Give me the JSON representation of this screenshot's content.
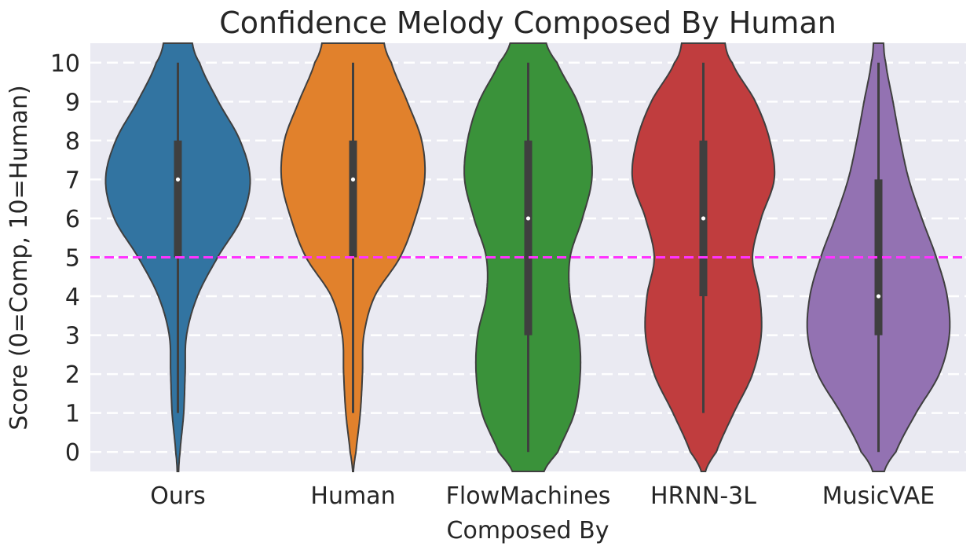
{
  "chart_data": {
    "type": "violin",
    "title": "Confidence Melody Composed By Human",
    "xlabel": "Composed By",
    "ylabel": "Score (0=Comp, 10=Human)",
    "ylim": [
      -0.5,
      10.5
    ],
    "yticks": [
      0,
      1,
      2,
      3,
      4,
      5,
      6,
      7,
      8,
      9,
      10
    ],
    "grid": true,
    "reference_line": {
      "y": 5,
      "color": "#ff33ff",
      "style": "dashed"
    },
    "categories": [
      "Ours",
      "Human",
      "FlowMachines",
      "HRNN-3L",
      "MusicVAE"
    ],
    "series": [
      {
        "name": "Ours",
        "color": "#3274a1",
        "min": 1,
        "q1": 5,
        "median": 7,
        "q3": 8,
        "max": 10,
        "density": [
          [
            -0.5,
            0.01
          ],
          [
            0,
            0.03
          ],
          [
            1,
            0.08
          ],
          [
            2,
            0.1
          ],
          [
            3,
            0.12
          ],
          [
            4,
            0.27
          ],
          [
            5,
            0.55
          ],
          [
            6,
            0.88
          ],
          [
            7,
            1.0
          ],
          [
            8,
            0.86
          ],
          [
            9,
            0.56
          ],
          [
            10,
            0.3
          ],
          [
            10.5,
            0.2
          ]
        ]
      },
      {
        "name": "Human",
        "color": "#e1812c",
        "min": 1,
        "q1": 5,
        "median": 7,
        "q3": 8,
        "max": 10,
        "density": [
          [
            -0.5,
            0.005
          ],
          [
            0,
            0.04
          ],
          [
            1,
            0.1
          ],
          [
            2,
            0.13
          ],
          [
            3,
            0.15
          ],
          [
            4,
            0.3
          ],
          [
            5,
            0.65
          ],
          [
            6,
            0.86
          ],
          [
            7,
            0.99
          ],
          [
            8,
            0.95
          ],
          [
            9,
            0.75
          ],
          [
            10,
            0.53
          ],
          [
            10.5,
            0.43
          ]
        ]
      },
      {
        "name": "FlowMachines",
        "color": "#3a923a",
        "min": 0,
        "q1": 3,
        "median": 6,
        "q3": 8,
        "max": 10,
        "density": [
          [
            -0.5,
            0.22
          ],
          [
            0,
            0.41
          ],
          [
            1,
            0.64
          ],
          [
            2,
            0.72
          ],
          [
            3,
            0.7
          ],
          [
            4,
            0.58
          ],
          [
            5,
            0.58
          ],
          [
            6,
            0.75
          ],
          [
            7,
            0.88
          ],
          [
            8,
            0.84
          ],
          [
            9,
            0.68
          ],
          [
            10,
            0.4
          ],
          [
            10.5,
            0.25
          ]
        ]
      },
      {
        "name": "HRNN-3L",
        "color": "#c03d3e",
        "min": 1,
        "q1": 4,
        "median": 6,
        "q3": 8,
        "max": 10,
        "density": [
          [
            -0.5,
            0.03
          ],
          [
            0,
            0.18
          ],
          [
            1,
            0.42
          ],
          [
            2,
            0.68
          ],
          [
            3,
            0.8
          ],
          [
            4,
            0.78
          ],
          [
            5,
            0.68
          ],
          [
            6,
            0.8
          ],
          [
            7,
            0.98
          ],
          [
            8,
            0.92
          ],
          [
            9,
            0.72
          ],
          [
            10,
            0.4
          ],
          [
            10.5,
            0.3
          ]
        ]
      },
      {
        "name": "MusicVAE",
        "color": "#9372b2",
        "min": 0,
        "q1": 3,
        "median": 4,
        "q3": 7,
        "max": 10,
        "density": [
          [
            -0.5,
            0.08
          ],
          [
            0,
            0.24
          ],
          [
            1,
            0.52
          ],
          [
            2,
            0.84
          ],
          [
            3,
            0.98
          ],
          [
            4,
            0.95
          ],
          [
            5,
            0.8
          ],
          [
            6,
            0.6
          ],
          [
            7,
            0.42
          ],
          [
            8,
            0.3
          ],
          [
            9,
            0.2
          ],
          [
            10,
            0.1
          ],
          [
            10.5,
            0.07
          ]
        ]
      }
    ]
  }
}
